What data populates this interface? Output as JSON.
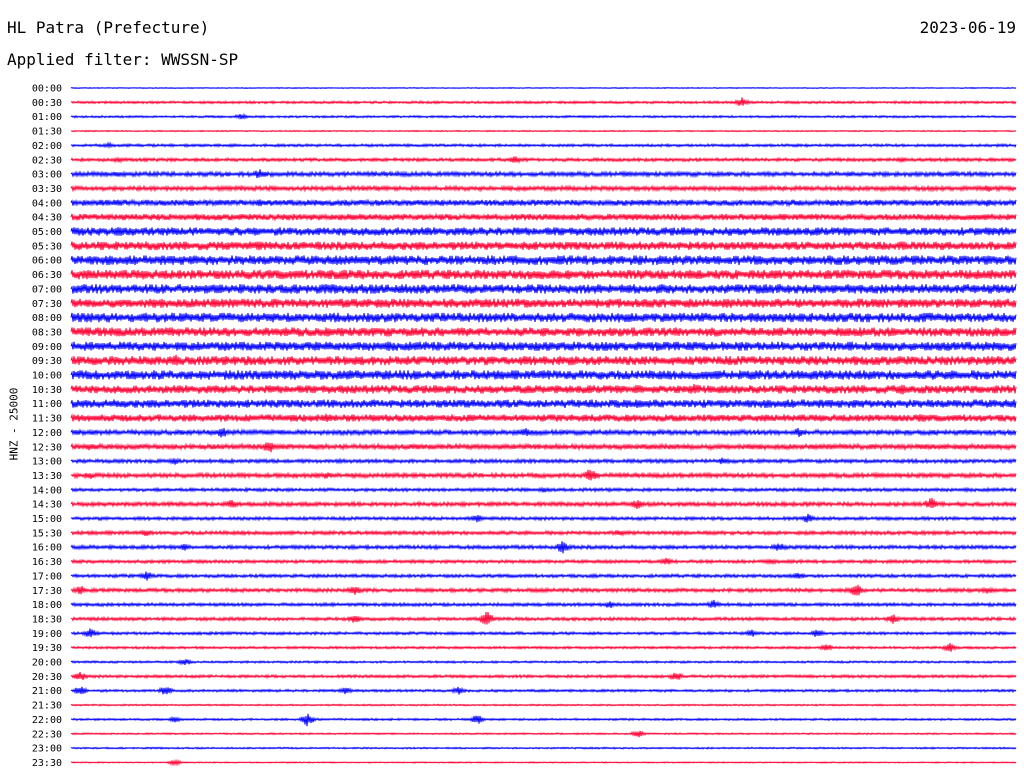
{
  "header": {
    "station": "HL Patra (Prefecture)",
    "date": "2023-06-19",
    "filter_label": "Applied filter: WWSSN-SP"
  },
  "channel_label": "HNZ - 25000",
  "colors": {
    "even": "#0000ff",
    "odd": "#ff0033"
  },
  "chart_data": {
    "type": "line",
    "title": "HL Patra (Prefecture)",
    "ylabel": "HNZ - 25000",
    "rows": [
      {
        "time": "00:00",
        "amp": 0.5,
        "events": []
      },
      {
        "time": "00:30",
        "amp": 1.2,
        "events": [
          [
            0.71,
            5
          ]
        ]
      },
      {
        "time": "01:00",
        "amp": 1.0,
        "events": [
          [
            0.18,
            3
          ]
        ]
      },
      {
        "time": "01:30",
        "amp": 0.6,
        "events": []
      },
      {
        "time": "02:00",
        "amp": 1.3,
        "events": [
          [
            0.04,
            3
          ]
        ]
      },
      {
        "time": "02:30",
        "amp": 1.6,
        "events": [
          [
            0.47,
            4
          ],
          [
            0.05,
            3
          ],
          [
            0.88,
            3
          ]
        ]
      },
      {
        "time": "03:00",
        "amp": 2.2,
        "events": [
          [
            0.2,
            6
          ],
          [
            0.05,
            3
          ]
        ]
      },
      {
        "time": "03:30",
        "amp": 2.2,
        "events": [
          [
            0.97,
            4
          ],
          [
            0.88,
            3
          ]
        ]
      },
      {
        "time": "04:00",
        "amp": 3.0,
        "events": [
          [
            0.05,
            4
          ],
          [
            0.2,
            4
          ],
          [
            0.97,
            4
          ]
        ]
      },
      {
        "time": "04:30",
        "amp": 3.2,
        "events": [
          [
            0.37,
            3
          ],
          [
            0.6,
            3
          ]
        ]
      },
      {
        "time": "05:00",
        "amp": 4.2,
        "events": [
          [
            0.05,
            6
          ],
          [
            0.75,
            4
          ]
        ]
      },
      {
        "time": "05:30",
        "amp": 4.3,
        "events": [
          [
            0.2,
            5
          ],
          [
            0.88,
            5
          ]
        ]
      },
      {
        "time": "06:00",
        "amp": 4.8,
        "events": [
          [
            0.13,
            5
          ],
          [
            0.97,
            5
          ]
        ]
      },
      {
        "time": "06:30",
        "amp": 4.8,
        "events": [
          [
            0.27,
            5
          ],
          [
            0.97,
            5
          ]
        ]
      },
      {
        "time": "07:00",
        "amp": 4.8,
        "events": []
      },
      {
        "time": "07:30",
        "amp": 4.6,
        "events": [
          [
            0.88,
            5
          ]
        ]
      },
      {
        "time": "08:00",
        "amp": 4.8,
        "events": [
          [
            0.03,
            5
          ],
          [
            0.72,
            5
          ]
        ]
      },
      {
        "time": "08:30",
        "amp": 4.6,
        "events": [
          [
            0.27,
            5
          ],
          [
            0.75,
            5
          ]
        ]
      },
      {
        "time": "09:00",
        "amp": 4.6,
        "events": [
          [
            0.26,
            5
          ]
        ]
      },
      {
        "time": "09:30",
        "amp": 4.6,
        "events": [
          [
            0.11,
            7
          ],
          [
            0.35,
            5
          ],
          [
            0.97,
            5
          ]
        ]
      },
      {
        "time": "10:00",
        "amp": 4.8,
        "events": []
      },
      {
        "time": "10:30",
        "amp": 4.2,
        "events": [
          [
            0.6,
            6
          ],
          [
            0.66,
            7
          ],
          [
            0.88,
            6
          ]
        ]
      },
      {
        "time": "11:00",
        "amp": 4.2,
        "events": [
          [
            0.17,
            5
          ],
          [
            0.6,
            5
          ]
        ]
      },
      {
        "time": "11:30",
        "amp": 3.6,
        "events": [
          [
            0.27,
            5
          ],
          [
            0.9,
            5
          ]
        ]
      },
      {
        "time": "12:00",
        "amp": 2.4,
        "events": [
          [
            0.16,
            6
          ],
          [
            0.48,
            5
          ],
          [
            0.77,
            5
          ]
        ]
      },
      {
        "time": "12:30",
        "amp": 2.6,
        "events": [
          [
            0.21,
            7
          ],
          [
            0.02,
            4
          ],
          [
            0.9,
            4
          ]
        ]
      },
      {
        "time": "13:00",
        "amp": 1.8,
        "events": [
          [
            0.11,
            4
          ],
          [
            0.69,
            4
          ]
        ]
      },
      {
        "time": "13:30",
        "amp": 2.2,
        "events": [
          [
            0.55,
            8
          ],
          [
            0.02,
            4
          ],
          [
            0.27,
            4
          ]
        ]
      },
      {
        "time": "14:00",
        "amp": 1.6,
        "events": [
          [
            0.5,
            3
          ]
        ]
      },
      {
        "time": "14:30",
        "amp": 2.0,
        "events": [
          [
            0.17,
            5
          ],
          [
            0.6,
            6
          ],
          [
            0.91,
            7
          ]
        ]
      },
      {
        "time": "15:00",
        "amp": 1.6,
        "events": [
          [
            0.43,
            4
          ],
          [
            0.78,
            5
          ]
        ]
      },
      {
        "time": "15:30",
        "amp": 1.8,
        "events": [
          [
            0.08,
            4
          ],
          [
            0.58,
            4
          ]
        ]
      },
      {
        "time": "16:00",
        "amp": 1.8,
        "events": [
          [
            0.52,
            7
          ],
          [
            0.12,
            4
          ],
          [
            0.75,
            5
          ]
        ]
      },
      {
        "time": "16:30",
        "amp": 1.6,
        "events": [
          [
            0.63,
            4
          ],
          [
            0.74,
            4
          ]
        ]
      },
      {
        "time": "17:00",
        "amp": 1.6,
        "events": [
          [
            0.08,
            5
          ],
          [
            0.77,
            4
          ]
        ]
      },
      {
        "time": "17:30",
        "amp": 1.8,
        "events": [
          [
            0.3,
            6
          ],
          [
            0.83,
            8
          ],
          [
            0.01,
            5
          ],
          [
            0.97,
            4
          ]
        ]
      },
      {
        "time": "18:00",
        "amp": 1.6,
        "events": [
          [
            0.68,
            5
          ],
          [
            0.57,
            4
          ]
        ]
      },
      {
        "time": "18:30",
        "amp": 1.6,
        "events": [
          [
            0.44,
            8
          ],
          [
            0.3,
            5
          ],
          [
            0.87,
            5
          ]
        ]
      },
      {
        "time": "19:00",
        "amp": 1.4,
        "events": [
          [
            0.02,
            5
          ],
          [
            0.72,
            4
          ],
          [
            0.79,
            5
          ]
        ]
      },
      {
        "time": "19:30",
        "amp": 1.2,
        "events": [
          [
            0.93,
            5
          ],
          [
            0.8,
            4
          ]
        ]
      },
      {
        "time": "20:00",
        "amp": 1.0,
        "events": [
          [
            0.12,
            4
          ]
        ]
      },
      {
        "time": "20:30",
        "amp": 1.4,
        "events": [
          [
            0.01,
            5
          ],
          [
            0.64,
            5
          ]
        ]
      },
      {
        "time": "21:00",
        "amp": 1.2,
        "events": [
          [
            0.01,
            5
          ],
          [
            0.1,
            5
          ],
          [
            0.29,
            4
          ],
          [
            0.41,
            4
          ]
        ]
      },
      {
        "time": "21:30",
        "amp": 0.8,
        "events": []
      },
      {
        "time": "22:00",
        "amp": 1.0,
        "events": [
          [
            0.25,
            7
          ],
          [
            0.43,
            5
          ],
          [
            0.11,
            3
          ]
        ]
      },
      {
        "time": "22:30",
        "amp": 0.8,
        "events": [
          [
            0.6,
            4
          ]
        ]
      },
      {
        "time": "23:00",
        "amp": 0.8,
        "events": []
      },
      {
        "time": "23:30",
        "amp": 0.6,
        "events": [
          [
            0.11,
            3
          ]
        ]
      }
    ]
  }
}
